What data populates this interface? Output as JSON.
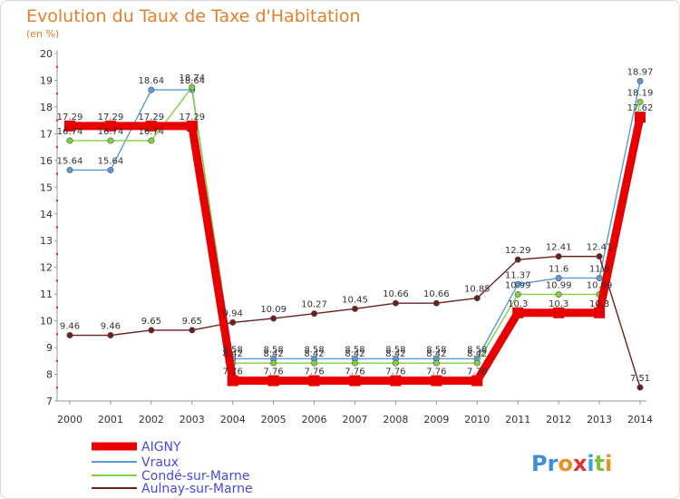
{
  "title": "Evolution du Taux de Taxe d'Habitation",
  "subtitle": "(en %)",
  "logo_text": "Proxiti",
  "chart_data": {
    "type": "line",
    "title": "Evolution du Taux de Taxe d'Habitation",
    "ylabel": "(en %)",
    "xlabel": "",
    "x": [
      "2000",
      "2001",
      "2002",
      "2003",
      "2004",
      "2005",
      "2006",
      "2007",
      "2008",
      "2009",
      "2010",
      "2011",
      "2012",
      "2013",
      "2014"
    ],
    "ylim": [
      7,
      20
    ],
    "yticks": [
      7,
      8,
      9,
      10,
      11,
      12,
      13,
      14,
      15,
      16,
      17,
      18,
      19,
      20
    ],
    "grid": false,
    "legend_placement": "bottom-left",
    "series": [
      {
        "name": "AIGNY",
        "color": "#e80000",
        "values": [
          17.29,
          17.29,
          17.29,
          17.29,
          7.76,
          7.76,
          7.76,
          7.76,
          7.76,
          7.76,
          7.76,
          10.3,
          10.3,
          10.3,
          17.62
        ]
      },
      {
        "name": "Vraux",
        "color": "#5b9bd5",
        "values": [
          15.64,
          15.64,
          18.64,
          18.64,
          8.58,
          8.58,
          8.58,
          8.58,
          8.58,
          8.58,
          8.58,
          11.37,
          11.6,
          11.6,
          18.97
        ]
      },
      {
        "name": "Condé-sur-Marne",
        "color": "#80d040",
        "values": [
          16.74,
          16.74,
          16.74,
          18.74,
          8.42,
          8.42,
          8.42,
          8.42,
          8.42,
          8.42,
          8.42,
          10.99,
          10.99,
          10.99,
          18.19
        ]
      },
      {
        "name": "Aulnay-sur-Marne",
        "color": "#6b2020",
        "values": [
          9.46,
          9.46,
          9.65,
          9.65,
          9.94,
          10.09,
          10.27,
          10.45,
          10.66,
          10.66,
          10.85,
          12.29,
          12.41,
          12.41,
          7.51
        ]
      }
    ]
  }
}
